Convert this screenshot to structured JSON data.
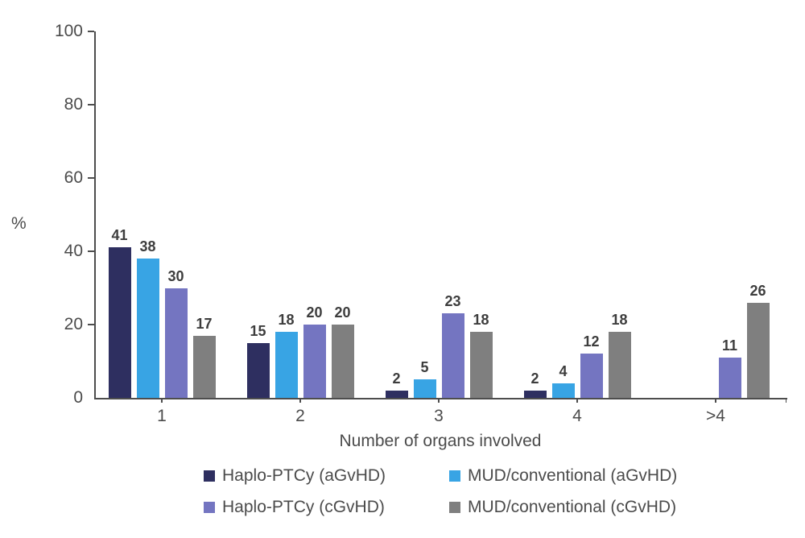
{
  "chart_data": {
    "type": "bar",
    "title": "",
    "xlabel": "Number of organs involved",
    "ylabel": "%",
    "ylim": [
      0,
      100
    ],
    "yticks": [
      0,
      20,
      40,
      60,
      80,
      100
    ],
    "categories": [
      "1",
      "2",
      "3",
      "4",
      ">4"
    ],
    "series": [
      {
        "name": "Haplo-PTCy (aGvHD)",
        "color": "#2e2f60",
        "values": [
          41,
          15,
          2,
          2,
          null
        ]
      },
      {
        "name": "MUD/conventional (aGvHD)",
        "color": "#38a4e4",
        "values": [
          38,
          18,
          5,
          4,
          null
        ]
      },
      {
        "name": "Haplo-PTCy (cGvHD)",
        "color": "#7475c1",
        "values": [
          30,
          20,
          23,
          12,
          11
        ]
      },
      {
        "name": "MUD/conventional (cGvHD)",
        "color": "#7f7f7f",
        "values": [
          17,
          20,
          18,
          18,
          26
        ]
      }
    ],
    "value_labels": true,
    "grid": false,
    "legend_position": "bottom"
  },
  "colors": {
    "axis": "#4d4d4d",
    "tick_text": "#4b4b4b",
    "value_label_text": "#3d3d3d",
    "background": "#ffffff"
  }
}
